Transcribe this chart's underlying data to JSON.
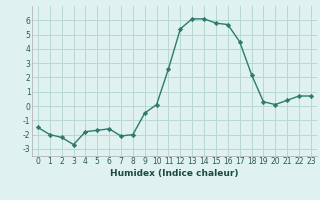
{
  "x": [
    0,
    1,
    2,
    3,
    4,
    5,
    6,
    7,
    8,
    9,
    10,
    11,
    12,
    13,
    14,
    15,
    16,
    17,
    18,
    19,
    20,
    21,
    22,
    23
  ],
  "y": [
    -1.5,
    -2.0,
    -2.2,
    -2.7,
    -1.8,
    -1.7,
    -1.6,
    -2.1,
    -2.0,
    -0.5,
    0.1,
    2.6,
    5.4,
    6.1,
    6.1,
    5.8,
    5.7,
    4.5,
    2.2,
    0.3,
    0.1,
    0.4,
    0.7,
    0.7
  ],
  "xlabel": "Humidex (Indice chaleur)",
  "ylim": [
    -3.5,
    7.0
  ],
  "xlim": [
    -0.5,
    23.5
  ],
  "line_color": "#2d7a6e",
  "marker": "D",
  "marker_size": 2.2,
  "bg_color": "#dff2f0",
  "grid_color": "#b8d8d4",
  "yticks": [
    -3,
    -2,
    -1,
    0,
    1,
    2,
    3,
    4,
    5,
    6
  ],
  "xticks": [
    0,
    1,
    2,
    3,
    4,
    5,
    6,
    7,
    8,
    9,
    10,
    11,
    12,
    13,
    14,
    15,
    16,
    17,
    18,
    19,
    20,
    21,
    22,
    23
  ],
  "xlabel_fontsize": 6.5,
  "tick_fontsize": 5.5
}
